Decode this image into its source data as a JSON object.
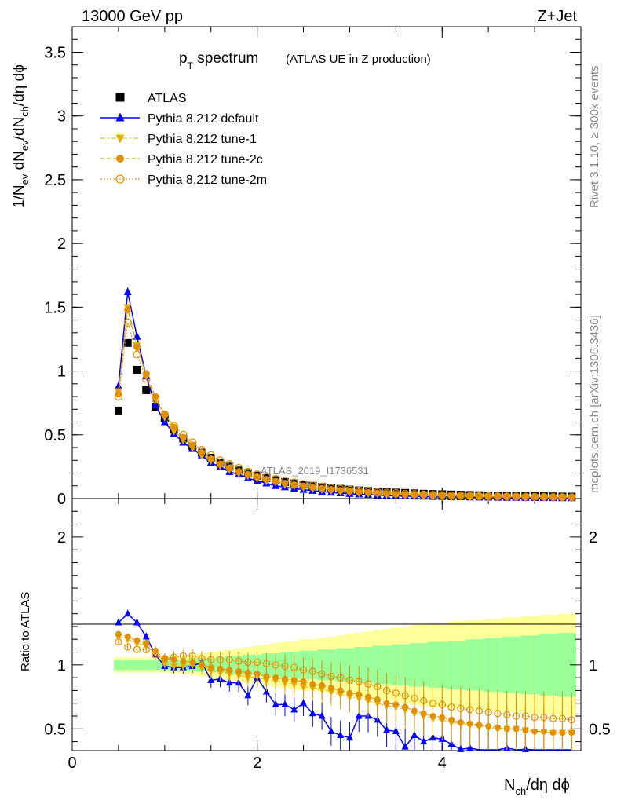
{
  "header": {
    "energy_label": "13000 GeV pp",
    "process_label": "Z+Jet",
    "watermark": "ATLAS_2019_I1736531",
    "side_rivet": "Rivet 3.1.10, ≥ 300k events",
    "side_mcplots": "mcplots.cern.ch [arXiv:1306.3436]"
  },
  "title": {
    "main": "p",
    "main_sub": "T",
    "main_rest": " spectrum",
    "small": "(ATLAS UE in Z production)"
  },
  "axes": {
    "ylabel_top": "1/N",
    "ylabel_top_parts": [
      "1/N",
      "ev",
      " dN",
      "ev",
      "/dN",
      "ch",
      "/dη dϕ"
    ],
    "ylabel_ratio": "Ratio to ATLAS",
    "xlabel_parts": [
      "N",
      "ch",
      "/dη dϕ"
    ],
    "top_ticks": [
      "0",
      "0.5",
      "1",
      "1.5",
      "2",
      "2.5",
      "3",
      "3.5"
    ],
    "ratio_ticks": [
      "0.5",
      "1",
      "2"
    ],
    "x_ticks": [
      "0",
      "2",
      "4"
    ]
  },
  "legend": [
    {
      "label": "ATLAS",
      "color": "#000000",
      "marker": "square-filled",
      "line": "none"
    },
    {
      "label": "Pythia 8.212 default",
      "color": "#0000ff",
      "marker": "triangle-up-filled",
      "line": "solid"
    },
    {
      "label": "Pythia 8.212 tune-1",
      "color": "#e6b000",
      "marker": "triangle-down-filled",
      "line": "dashdot"
    },
    {
      "label": "Pythia 8.212 tune-2c",
      "color": "#e09000",
      "marker": "circle-filled",
      "line": "dashed"
    },
    {
      "label": "Pythia 8.212 tune-2m",
      "color": "#e09000",
      "marker": "circle-open",
      "line": "dotted"
    }
  ],
  "chart_data": {
    "type": "scatter",
    "title": "pT spectrum (ATLAS UE in Z production)",
    "xlabel": "Nch/dη dϕ",
    "ylabel": "1/Nev dNev/dNch/dη dϕ",
    "xlim": [
      0,
      5.5
    ],
    "ylim": [
      0,
      3.7
    ],
    "ratio_ylim": [
      0.33,
      2.3
    ],
    "x": [
      0.5,
      0.6,
      0.7,
      0.8,
      0.9,
      1.0,
      1.1,
      1.2,
      1.3,
      1.4,
      1.5,
      1.6,
      1.7,
      1.8,
      1.9,
      2.0,
      2.1,
      2.2,
      2.3,
      2.4,
      2.5,
      2.6,
      2.7,
      2.8,
      2.9,
      3.0,
      3.1,
      3.2,
      3.3,
      3.4,
      3.5,
      3.6,
      3.7,
      3.8,
      3.9,
      4.0,
      4.1,
      4.2,
      4.3,
      4.4,
      4.5,
      4.6,
      4.7,
      4.8,
      4.9,
      5.0,
      5.1,
      5.2,
      5.3,
      5.4
    ],
    "series": [
      {
        "name": "ATLAS",
        "values": [
          0.69,
          1.22,
          1.01,
          0.85,
          0.72,
          0.63,
          0.54,
          0.47,
          0.41,
          0.36,
          0.32,
          0.28,
          0.25,
          0.22,
          0.2,
          0.18,
          0.16,
          0.145,
          0.13,
          0.12,
          0.11,
          0.1,
          0.09,
          0.083,
          0.076,
          0.07,
          0.064,
          0.059,
          0.055,
          0.051,
          0.047,
          0.044,
          0.041,
          0.038,
          0.036,
          0.034,
          0.032,
          0.03,
          0.028,
          0.026,
          0.025,
          0.023,
          0.022,
          0.021,
          0.02,
          0.019,
          0.018,
          0.017,
          0.016,
          0.015
        ]
      },
      {
        "name": "Pythia 8.212 default",
        "values": [
          0.88,
          1.62,
          1.27,
          0.96,
          0.73,
          0.6,
          0.51,
          0.44,
          0.39,
          0.34,
          0.28,
          0.25,
          0.21,
          0.19,
          0.16,
          0.14,
          0.12,
          0.1,
          0.09,
          0.078,
          0.07,
          0.062,
          0.055,
          0.048,
          0.043,
          0.038,
          0.034,
          0.031,
          0.028,
          0.025,
          0.022,
          0.02,
          0.018,
          0.017,
          0.015,
          0.014,
          0.013,
          0.012,
          0.011,
          0.01,
          0.009,
          0.0085,
          0.008,
          0.0075,
          0.007,
          0.0065,
          0.006,
          0.0055,
          0.005,
          0.0048
        ]
      },
      {
        "name": "Pythia 8.212 tune-1",
        "values": [
          0.84,
          1.5,
          1.2,
          0.96,
          0.78,
          0.64,
          0.53,
          0.46,
          0.4,
          0.34,
          0.3,
          0.26,
          0.23,
          0.2,
          0.18,
          0.16,
          0.14,
          0.13,
          0.11,
          0.1,
          0.09,
          0.08,
          0.072,
          0.065,
          0.058,
          0.052,
          0.047,
          0.042,
          0.038,
          0.034,
          0.031,
          0.028,
          0.025,
          0.023,
          0.021,
          0.019,
          0.017,
          0.016,
          0.015,
          0.014,
          0.013,
          0.012,
          0.011,
          0.01,
          0.0095,
          0.009,
          0.0085,
          0.008,
          0.0075,
          0.007
        ]
      },
      {
        "name": "Pythia 8.212 tune-2c",
        "values": [
          0.82,
          1.48,
          1.19,
          0.98,
          0.8,
          0.66,
          0.56,
          0.48,
          0.42,
          0.36,
          0.31,
          0.27,
          0.24,
          0.21,
          0.19,
          0.17,
          0.15,
          0.135,
          0.12,
          0.108,
          0.098,
          0.088,
          0.079,
          0.071,
          0.064,
          0.058,
          0.052,
          0.047,
          0.043,
          0.039,
          0.035,
          0.032,
          0.029,
          0.027,
          0.025,
          0.023,
          0.021,
          0.019,
          0.018,
          0.017,
          0.016,
          0.015,
          0.014,
          0.013,
          0.012,
          0.011,
          0.0105,
          0.01,
          0.0095,
          0.009
        ]
      },
      {
        "name": "Pythia 8.212 tune-2m",
        "values": [
          0.8,
          1.38,
          1.13,
          0.94,
          0.78,
          0.66,
          0.57,
          0.5,
          0.44,
          0.38,
          0.34,
          0.3,
          0.27,
          0.24,
          0.21,
          0.19,
          0.17,
          0.155,
          0.14,
          0.126,
          0.114,
          0.103,
          0.093,
          0.084,
          0.076,
          0.069,
          0.063,
          0.057,
          0.052,
          0.047,
          0.043,
          0.039,
          0.036,
          0.033,
          0.03,
          0.028,
          0.026,
          0.024,
          0.022,
          0.02,
          0.019,
          0.018,
          0.017,
          0.016,
          0.015,
          0.014,
          0.013,
          0.012,
          0.011,
          0.0105
        ]
      }
    ],
    "ratio_series": [
      {
        "name": "Pythia 8.212 default",
        "values": [
          1.33,
          1.4,
          1.33,
          1.22,
          1.08,
          0.99,
          0.98,
          0.98,
          0.99,
          1.02,
          0.88,
          0.89,
          0.86,
          0.86,
          0.76,
          0.9,
          0.79,
          0.69,
          0.69,
          0.65,
          0.7,
          0.62,
          0.6,
          0.48,
          0.45,
          0.43,
          0.6,
          0.6,
          0.57,
          0.49,
          0.48,
          0.36,
          0.45,
          0.4,
          0.43,
          0.42,
          0.38,
          0.34,
          0.35,
          0.33,
          0.33,
          0.33,
          0.35,
          0.33,
          0.34,
          0.33,
          0.32,
          0.31,
          0.3,
          0.3
        ]
      },
      {
        "name": "Pythia 8.212 tune-1",
        "values": [
          1.22,
          1.2,
          1.17,
          1.15,
          1.09,
          1.01,
          0.99,
          0.99,
          1.0,
          0.98,
          0.95,
          0.94,
          0.93,
          0.92,
          0.9,
          0.91,
          0.88,
          0.88,
          0.86,
          0.85,
          0.83,
          0.82,
          0.81,
          0.79,
          0.77,
          0.75,
          0.74,
          0.72,
          0.7,
          0.68,
          0.67,
          0.65,
          0.62,
          0.6,
          0.58,
          0.57,
          0.55,
          0.54,
          0.53,
          0.52,
          0.51,
          0.5,
          0.5,
          0.5,
          0.49,
          0.48,
          0.48,
          0.47,
          0.47,
          0.47
        ]
      },
      {
        "name": "Pythia 8.212 tune-2c",
        "values": [
          1.24,
          1.22,
          1.19,
          1.17,
          1.11,
          1.05,
          1.04,
          1.03,
          1.02,
          1.0,
          0.98,
          0.97,
          0.96,
          0.95,
          0.94,
          0.93,
          0.91,
          0.9,
          0.89,
          0.88,
          0.87,
          0.85,
          0.84,
          0.82,
          0.8,
          0.78,
          0.77,
          0.75,
          0.73,
          0.7,
          0.69,
          0.67,
          0.64,
          0.62,
          0.6,
          0.59,
          0.57,
          0.55,
          0.54,
          0.53,
          0.52,
          0.51,
          0.5,
          0.5,
          0.49,
          0.48,
          0.48,
          0.47,
          0.47,
          0.47
        ]
      },
      {
        "name": "Pythia 8.212 tune-2m",
        "values": [
          1.18,
          1.14,
          1.12,
          1.12,
          1.08,
          1.05,
          1.06,
          1.07,
          1.07,
          1.05,
          1.04,
          1.04,
          1.04,
          1.03,
          1.02,
          1.02,
          1.01,
          1.0,
          0.99,
          0.98,
          0.96,
          0.95,
          0.93,
          0.91,
          0.9,
          0.88,
          0.87,
          0.85,
          0.83,
          0.8,
          0.78,
          0.76,
          0.74,
          0.72,
          0.7,
          0.69,
          0.67,
          0.66,
          0.65,
          0.64,
          0.63,
          0.62,
          0.61,
          0.6,
          0.6,
          0.59,
          0.59,
          0.58,
          0.58,
          0.57
        ]
      }
    ],
    "ratio_band_green": [
      0.04,
      0.04,
      0.04,
      0.04,
      0.04,
      0.04,
      0.04,
      0.04,
      0.05,
      0.05,
      0.05,
      0.06,
      0.07,
      0.07,
      0.08,
      0.08,
      0.09,
      0.09,
      0.1,
      0.1,
      0.11,
      0.11,
      0.12,
      0.12,
      0.13,
      0.13,
      0.14,
      0.14,
      0.15,
      0.15,
      0.16,
      0.16,
      0.17,
      0.17,
      0.18,
      0.18,
      0.19,
      0.19,
      0.2,
      0.2,
      0.21,
      0.21,
      0.22,
      0.22,
      0.23,
      0.23,
      0.24,
      0.24,
      0.25,
      0.25
    ],
    "ratio_band_yellow": [
      0.06,
      0.06,
      0.06,
      0.06,
      0.06,
      0.06,
      0.07,
      0.07,
      0.08,
      0.09,
      0.1,
      0.11,
      0.12,
      0.13,
      0.14,
      0.15,
      0.16,
      0.17,
      0.18,
      0.19,
      0.2,
      0.2,
      0.21,
      0.22,
      0.23,
      0.24,
      0.25,
      0.26,
      0.27,
      0.28,
      0.29,
      0.3,
      0.31,
      0.32,
      0.33,
      0.33,
      0.34,
      0.34,
      0.35,
      0.35,
      0.36,
      0.36,
      0.37,
      0.37,
      0.38,
      0.38,
      0.39,
      0.39,
      0.4,
      0.4
    ],
    "legend_position": "top-left"
  }
}
